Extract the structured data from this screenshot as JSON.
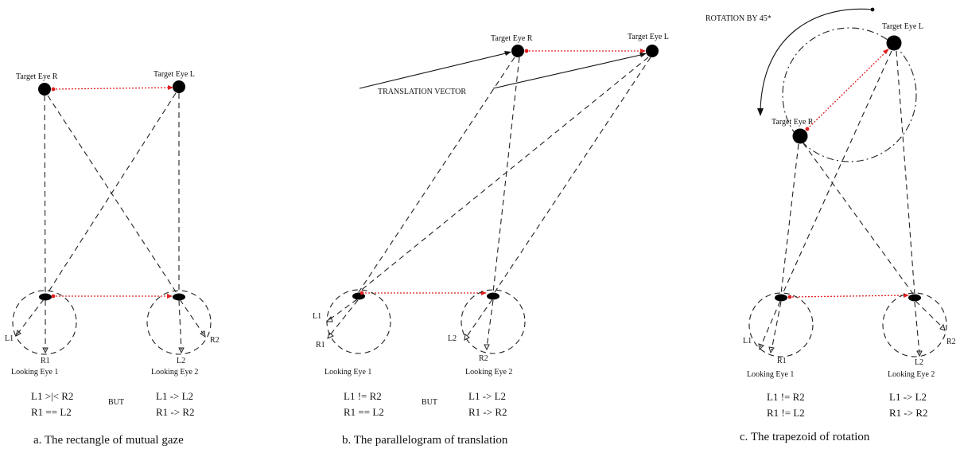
{
  "panels": [
    {
      "caption": "a. The rectangle of mutual gaze",
      "target_r_label": "Target Eye R",
      "target_l_label": "Target Eye L",
      "looking_eye_1_label": "Looking Eye 1",
      "looking_eye_2_label": "Looking Eye 2",
      "marker_labels": [
        "L1",
        "R1",
        "L2",
        "R2"
      ],
      "equations_left": [
        "L1 >|< R2",
        "R1 == L2"
      ],
      "but_label": "BUT",
      "equations_right": [
        "L1 -> L2",
        "R1 -> R2"
      ]
    },
    {
      "caption": "b. The parallelogram of translation",
      "target_r_label": "Target Eye R",
      "target_l_label": "Target Eye L",
      "annotation": "TRANSLATION VECTOR",
      "looking_eye_1_label": "Looking Eye 1",
      "looking_eye_2_label": "Looking Eye 2",
      "marker_labels": [
        "L1",
        "R1",
        "L2",
        "R2"
      ],
      "equations_left": [
        "L1 != R2",
        "R1 == L2"
      ],
      "but_label": "BUT",
      "equations_right": [
        "L1 -> L2",
        "R1 -> R2"
      ]
    },
    {
      "caption": "c. The trapezoid of rotation",
      "target_r_label": "Target Eye R",
      "target_l_label": "Target Eye L",
      "annotation": "ROTATION BY 45*",
      "looking_eye_1_label": "Looking Eye 1",
      "looking_eye_2_label": "Looking Eye 2",
      "marker_labels": [
        "L1",
        "R1",
        "L2",
        "R2"
      ],
      "equations_left": [
        "L1 != R2",
        "R1 != L2"
      ],
      "equations_right": [
        "L1 -> L2",
        "R1 -> R2"
      ]
    }
  ],
  "colors": {
    "line": "#222222",
    "gaze_link": "#e02020",
    "eye": "#000000"
  }
}
